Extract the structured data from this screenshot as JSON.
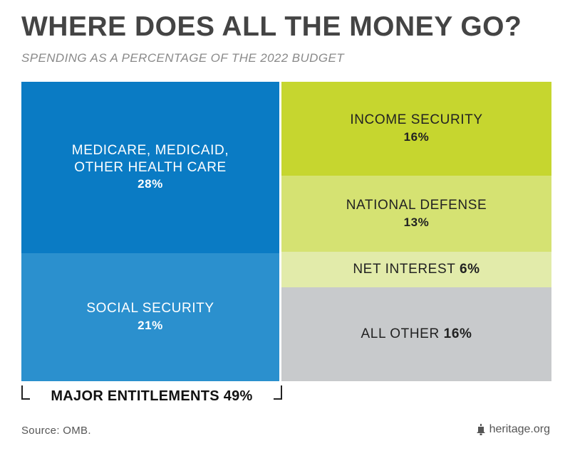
{
  "title": "WHERE DOES ALL THE MONEY GO?",
  "subtitle": "SPENDING AS A PERCENTAGE OF THE 2022 BUDGET",
  "chart_data": {
    "type": "treemap",
    "unit": "%",
    "columns": [
      {
        "tiles": [
          {
            "lines": [
              "MEDICARE, MEDICAID,",
              "OTHER HEALTH CARE"
            ],
            "label_display": "MEDICARE, MEDICAID, OTHER HEALTH CARE",
            "value": 28,
            "value_label": "28%",
            "color": "#0a7bc4",
            "text_color": "light",
            "inline": false
          },
          {
            "lines": [
              "SOCIAL SECURITY"
            ],
            "label_display": "SOCIAL SECURITY",
            "value": 21,
            "value_label": "21%",
            "color": "#2b90ce",
            "text_color": "light",
            "inline": false
          }
        ]
      },
      {
        "tiles": [
          {
            "lines": [
              "INCOME SECURITY"
            ],
            "label_display": "INCOME SECURITY",
            "value": 16,
            "value_label": "16%",
            "color": "#c6d62f",
            "text_color": "dark",
            "inline": false
          },
          {
            "lines": [
              "NATIONAL DEFENSE"
            ],
            "label_display": "NATIONAL DEFENSE",
            "value": 13,
            "value_label": "13%",
            "color": "#d5e272",
            "text_color": "dark",
            "inline": false
          },
          {
            "lines": [
              "NET INTEREST"
            ],
            "label_display": "NET INTEREST",
            "value": 6,
            "value_label": "6%",
            "color": "#e2ebaa",
            "text_color": "dark",
            "inline": true
          },
          {
            "lines": [
              "ALL OTHER"
            ],
            "label_display": "ALL OTHER",
            "value": 16,
            "value_label": "16%",
            "color": "#c8cacc",
            "text_color": "dark",
            "inline": true
          }
        ]
      }
    ],
    "bracket": {
      "label": "MAJOR ENTITLEMENTS 49%",
      "spans": "first-column"
    }
  },
  "source": "Source: OMB.",
  "brand": "heritage.org",
  "icons": {
    "brand": "liberty-bell-icon"
  }
}
